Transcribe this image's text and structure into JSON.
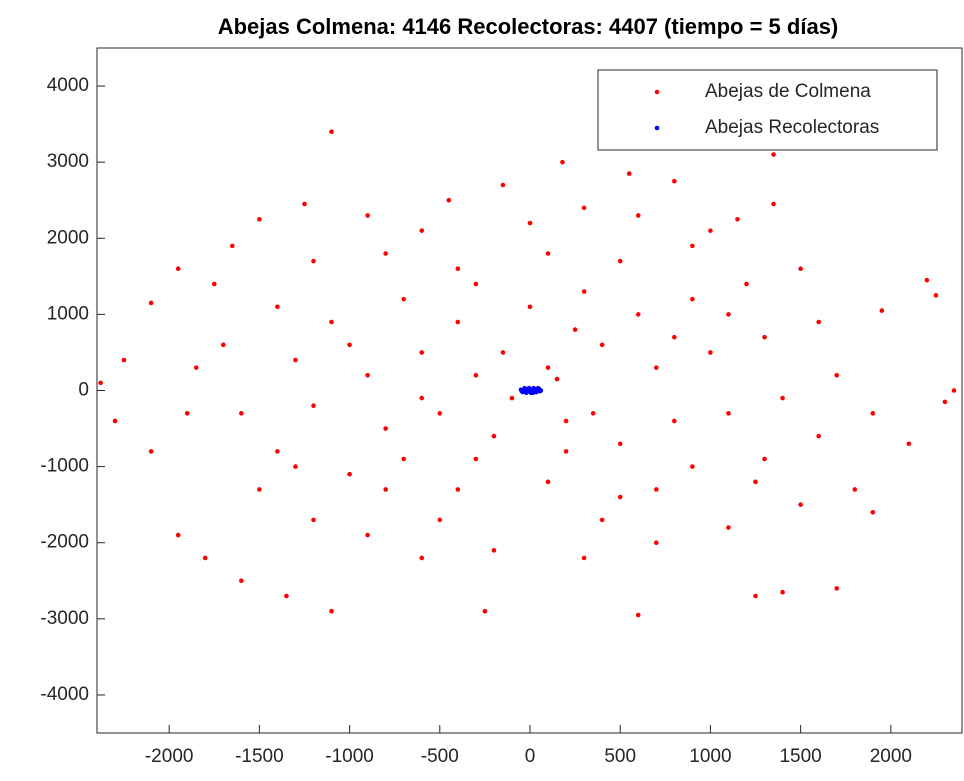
{
  "chart_data": {
    "type": "scatter",
    "title": "Abejas Colmena: 4146 Recolectoras: 4407 (tiempo = 5 días)",
    "xlim": [
      -2400,
      2400
    ],
    "ylim": [
      -4500,
      4500
    ],
    "xticks": [
      -2000,
      -1500,
      -1000,
      -500,
      0,
      500,
      1000,
      1500,
      2000
    ],
    "yticks": [
      -4000,
      -3000,
      -2000,
      -1000,
      0,
      1000,
      2000,
      3000,
      4000
    ],
    "legend": "upper right",
    "series": [
      {
        "name": "Abejas de Colmena",
        "color": "#ff0000",
        "x": [
          -1100,
          1350,
          180,
          550,
          -150,
          800,
          -1250,
          -450,
          1350,
          -1500,
          1150,
          -900,
          300,
          -1650,
          2200,
          2250,
          -1950,
          -2100,
          -1750,
          1950,
          -1850,
          -2250,
          2350,
          -2380,
          2300,
          2100,
          -2100,
          -2300,
          -1950,
          -1800,
          -1600,
          -1350,
          -1100,
          -250,
          600,
          1250,
          1700,
          1400,
          1800,
          1900,
          -1500,
          -1200,
          -900,
          -600,
          -200,
          300,
          700,
          1100,
          1500,
          -1400,
          -1000,
          -700,
          -400,
          100,
          500,
          900,
          1300,
          1600,
          -1600,
          -1200,
          -800,
          -500,
          -200,
          200,
          500,
          800,
          1100,
          1400,
          1700,
          -1700,
          -1300,
          -900,
          -600,
          -300,
          100,
          400,
          700,
          1000,
          1300,
          1600,
          -1400,
          -1100,
          -700,
          -400,
          0,
          300,
          600,
          900,
          1200,
          1500,
          -1200,
          -800,
          -400,
          100,
          500,
          900,
          -600,
          0,
          600,
          1000,
          -100,
          150,
          -300,
          250,
          -800,
          700,
          1900,
          -1900,
          -300,
          400,
          1100,
          -1000,
          200,
          -500,
          1250,
          -1300,
          800,
          -600,
          350,
          -150
        ],
        "values": [
          3400,
          3100,
          3000,
          2850,
          2700,
          2750,
          2450,
          2500,
          2450,
          2250,
          2250,
          2300,
          2400,
          1900,
          1450,
          1250,
          1600,
          1150,
          1400,
          1050,
          300,
          400,
          0,
          100,
          -150,
          -700,
          -800,
          -400,
          -1900,
          -2200,
          -2500,
          -2700,
          -2900,
          -2900,
          -2950,
          -2700,
          -2600,
          -2650,
          -1300,
          -1600,
          -1300,
          -1700,
          -1900,
          -2200,
          -2100,
          -2200,
          -2000,
          -1800,
          -1500,
          -800,
          -1100,
          -900,
          -1300,
          -1200,
          -1400,
          -1000,
          -900,
          -600,
          -300,
          -200,
          -500,
          -300,
          -600,
          -400,
          -700,
          -400,
          -300,
          -100,
          200,
          600,
          400,
          200,
          500,
          200,
          300,
          600,
          300,
          500,
          700,
          900,
          1100,
          900,
          1200,
          900,
          1100,
          1300,
          1000,
          1200,
          1400,
          1600,
          1700,
          1800,
          1600,
          1800,
          1700,
          1900,
          2100,
          2200,
          2300,
          2100,
          -100,
          150,
          -900,
          800,
          -1300,
          -1300,
          -300,
          -300,
          1400,
          -1700,
          1000,
          600,
          -800,
          -1700,
          -1200,
          -1000,
          700,
          -100,
          -300,
          500
        ]
      },
      {
        "name": "Abejas Recolectoras",
        "color": "#0000ff",
        "x": [
          -50,
          -40,
          -30,
          -20,
          -10,
          0,
          10,
          20,
          30,
          40,
          50,
          60,
          -45,
          -25,
          -5,
          15,
          35,
          55,
          -35,
          5,
          25,
          45
        ],
        "values": [
          10,
          -20,
          30,
          -30,
          20,
          0,
          -10,
          30,
          -20,
          10,
          20,
          0,
          -10,
          10,
          30,
          -30,
          -20,
          -10,
          0,
          -30,
          20,
          30
        ]
      }
    ]
  }
}
